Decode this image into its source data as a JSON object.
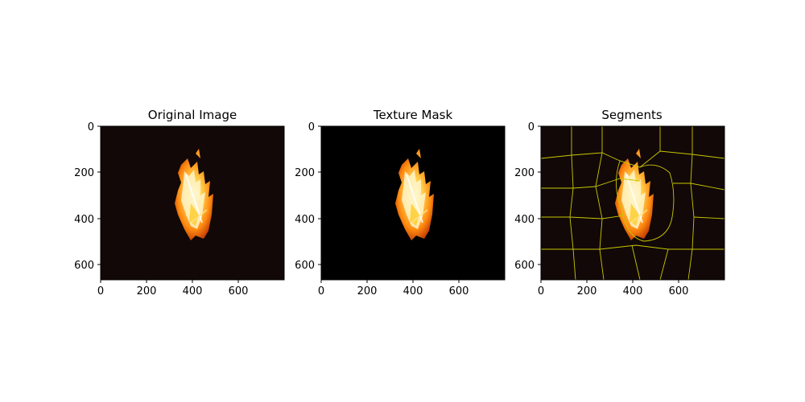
{
  "panels": [
    {
      "title": "Original Image",
      "y_ticks": [
        "0",
        "200",
        "400",
        "600"
      ],
      "x_ticks": [
        "0",
        "200",
        "400",
        "600"
      ]
    },
    {
      "title": "Texture Mask",
      "y_ticks": [
        "0",
        "200",
        "400",
        "600"
      ],
      "x_ticks": [
        "0",
        "200",
        "400",
        "600"
      ]
    },
    {
      "title": "Segments",
      "y_ticks": [
        "0",
        "200",
        "400",
        "600"
      ],
      "x_ticks": [
        "0",
        "200",
        "400",
        "600"
      ]
    }
  ],
  "colors": {
    "background": "#ffffff",
    "image_dark": "#120808",
    "mask_black": "#000000",
    "segment_line": "#c8c800",
    "fire_core": "#fff6c0",
    "fire_mid": "#ffb020",
    "fire_outer": "#e04a00"
  }
}
